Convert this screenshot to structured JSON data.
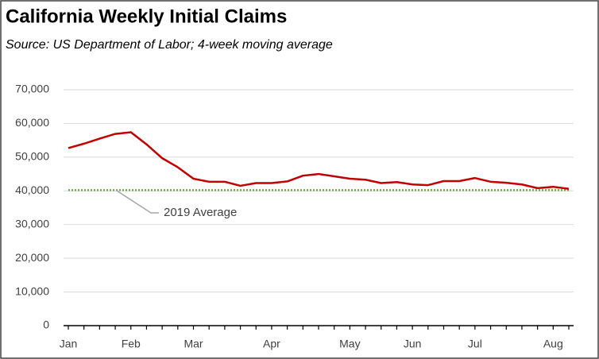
{
  "chart_data": {
    "type": "line",
    "title": "California Weekly Initial Claims",
    "subtitle": "Source:  US Department of Labor; 4-week moving average",
    "categories": [
      "Jan",
      null,
      null,
      null,
      "Feb",
      null,
      null,
      null,
      "Mar",
      null,
      null,
      null,
      null,
      "Apr",
      null,
      null,
      null,
      null,
      "May",
      null,
      null,
      null,
      "Jun",
      null,
      null,
      null,
      "Jul",
      null,
      null,
      null,
      null,
      "Aug",
      null
    ],
    "values": [
      52700,
      54000,
      55500,
      56900,
      57400,
      53800,
      49700,
      47000,
      43600,
      42700,
      42700,
      41500,
      42300,
      42300,
      42800,
      44500,
      45000,
      44300,
      43600,
      43300,
      42300,
      42600,
      41900,
      41700,
      42900,
      42900,
      43800,
      42700,
      42400,
      41900,
      40800,
      41200,
      40600
    ],
    "color": "#c00000",
    "reference": {
      "label": "2019 Average",
      "value": 40200,
      "color": "#70ad47"
    },
    "ylim": [
      0,
      70000
    ],
    "yticks": [
      0,
      {
        "value": 10000,
        "label": "10,000"
      },
      {
        "value": 20000,
        "label": "20,000"
      },
      {
        "value": 30000,
        "label": "30,000"
      },
      {
        "value": 40000,
        "label": "40,000"
      },
      {
        "value": 50000,
        "label": "50,000"
      },
      {
        "value": 60000,
        "label": "60,000"
      },
      {
        "value": 70000,
        "label": "70,000"
      }
    ],
    "grid": true
  }
}
